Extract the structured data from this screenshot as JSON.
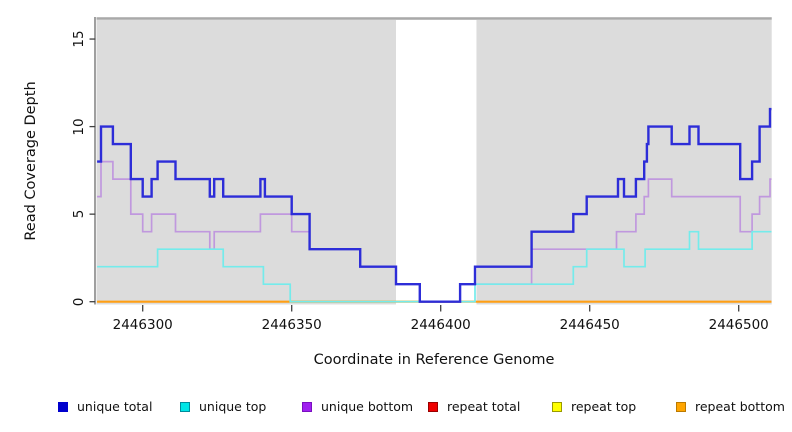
{
  "chart_data": {
    "type": "line",
    "subtype": "step",
    "title": "",
    "xlabel": "Coordinate in Reference Genome",
    "ylabel": "Read Coverage Depth",
    "xlim": [
      2446284.7,
      2446511
    ],
    "ylim": [
      0,
      16.3
    ],
    "x_ticks": [
      2446300,
      2446350,
      2446400,
      2446450,
      2446500
    ],
    "y_ticks": [
      0,
      5,
      10,
      15
    ],
    "grid": false,
    "panel_bg": "#dcdcdc",
    "panel_top_edge_color": "#a9a9a9",
    "axis_color": "#404040",
    "white_band": {
      "from": 2446385,
      "to": 2446412,
      "color": "#ffffff"
    },
    "draw_order": [
      "repeat_total",
      "repeat_top",
      "repeat_bottom",
      "overlap_zero",
      "unique_bottom",
      "unique_top",
      "unique_total"
    ],
    "series": {
      "unique_total": {
        "label": "unique total",
        "color": "#2d2dd8",
        "width": 2.4,
        "points": [
          [
            2446284.7,
            8
          ],
          [
            2446286,
            10
          ],
          [
            2446290,
            9
          ],
          [
            2446296,
            7
          ],
          [
            2446300,
            6
          ],
          [
            2446303,
            7
          ],
          [
            2446305,
            8
          ],
          [
            2446311,
            7
          ],
          [
            2446322.5,
            6
          ],
          [
            2446324,
            7
          ],
          [
            2446327,
            6
          ],
          [
            2446339.5,
            7
          ],
          [
            2446341,
            6
          ],
          [
            2446350,
            5
          ],
          [
            2446356,
            3
          ],
          [
            2446373,
            2
          ],
          [
            2446385,
            1
          ],
          [
            2446393,
            0
          ],
          [
            2446406.5,
            1
          ],
          [
            2446411.5,
            2
          ],
          [
            2446430.5,
            4
          ],
          [
            2446444.5,
            5
          ],
          [
            2446449,
            6
          ],
          [
            2446459.5,
            7
          ],
          [
            2446461.5,
            6
          ],
          [
            2446465.5,
            7
          ],
          [
            2446468.3,
            8
          ],
          [
            2446469.2,
            9
          ],
          [
            2446469.7,
            10
          ],
          [
            2446477.5,
            9
          ],
          [
            2446483.5,
            10
          ],
          [
            2446486.5,
            9
          ],
          [
            2446500.5,
            7
          ],
          [
            2446504.5,
            8
          ],
          [
            2446507,
            10
          ],
          [
            2446510.5,
            11
          ]
        ]
      },
      "unique_top": {
        "label": "unique top",
        "color": "#74ebeb",
        "width": 1.7,
        "points": [
          [
            2446284.7,
            2
          ],
          [
            2446305,
            3
          ],
          [
            2446327,
            2
          ],
          [
            2446340.5,
            1
          ],
          [
            2446349.5,
            0
          ],
          [
            2446411.5,
            1
          ],
          [
            2446444.5,
            2
          ],
          [
            2446449,
            3
          ],
          [
            2446461.5,
            2
          ],
          [
            2446468.6,
            3
          ],
          [
            2446483.5,
            4
          ],
          [
            2446486.5,
            3
          ],
          [
            2446504.5,
            4
          ]
        ]
      },
      "unique_bottom": {
        "label": "unique bottom",
        "color": "#c098de",
        "width": 1.7,
        "points": [
          [
            2446284.7,
            6
          ],
          [
            2446286,
            8
          ],
          [
            2446290,
            7
          ],
          [
            2446296,
            5
          ],
          [
            2446300,
            4
          ],
          [
            2446303,
            5
          ],
          [
            2446311,
            4
          ],
          [
            2446322.5,
            3
          ],
          [
            2446324,
            4
          ],
          [
            2446339.5,
            5
          ],
          [
            2446350,
            4
          ],
          [
            2446356,
            3
          ],
          [
            2446373,
            2
          ],
          [
            2446385,
            1
          ],
          [
            2446393,
            0
          ],
          [
            2446406.5,
            1
          ],
          [
            2446430.5,
            3
          ],
          [
            2446459,
            4
          ],
          [
            2446465.5,
            5
          ],
          [
            2446468.3,
            6
          ],
          [
            2446469.7,
            7
          ],
          [
            2446477.5,
            6
          ],
          [
            2446500.5,
            4
          ],
          [
            2446504.5,
            5
          ],
          [
            2446507,
            6
          ],
          [
            2446510.5,
            7
          ]
        ]
      },
      "repeat_total": {
        "label": "repeat total",
        "color": "#dd0000",
        "width": 1.5,
        "points": [
          [
            2446284.7,
            0
          ]
        ]
      },
      "repeat_top": {
        "label": "repeat top",
        "color": "#ffff00",
        "width": 1.5,
        "points": [
          [
            2446284.7,
            0
          ]
        ]
      },
      "repeat_bottom": {
        "label": "repeat bottom",
        "color": "#ff9f14",
        "width": 2.2,
        "points": [
          [
            2446284.7,
            0
          ]
        ]
      },
      "overlap_zero": {
        "label": "",
        "color": "#97d897",
        "width": 1.7,
        "points": [
          [
            2446349.5,
            0
          ]
        ],
        "x_end": 2446411.5
      }
    }
  },
  "legend": {
    "items": [
      {
        "label": "unique total",
        "fill": "#0000cd",
        "border": "#0000cd"
      },
      {
        "label": "unique top",
        "fill": "#00e6e6",
        "border": "#008b9b"
      },
      {
        "label": "unique bottom",
        "fill": "#a020f0",
        "border": "#7a0fc0"
      },
      {
        "label": "repeat total",
        "fill": "#ee0000",
        "border": "#990000"
      },
      {
        "label": "repeat top",
        "fill": "#ffff00",
        "border": "#9a9a00"
      },
      {
        "label": "repeat bottom",
        "fill": "#ffa500",
        "border": "#bb7a00"
      }
    ]
  }
}
